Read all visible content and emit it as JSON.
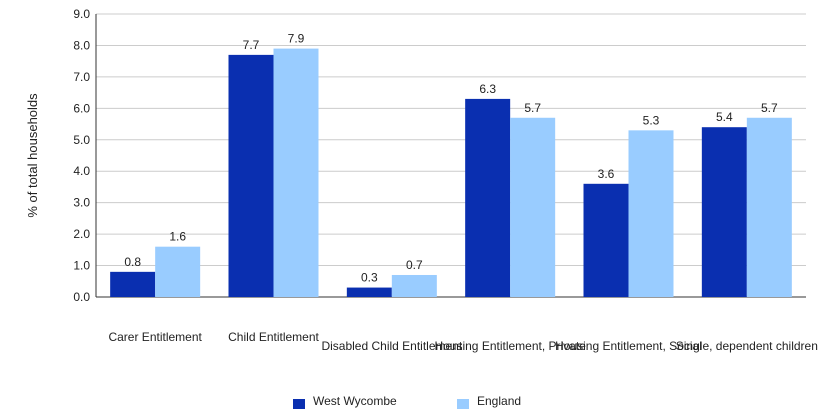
{
  "chart_data": {
    "type": "bar",
    "title": "",
    "xlabel": "",
    "ylabel": "% of total households",
    "ylim": [
      0,
      9
    ],
    "ytick_step": 1,
    "yticks": [
      "0.0",
      "1.0",
      "2.0",
      "3.0",
      "4.0",
      "5.0",
      "6.0",
      "7.0",
      "8.0",
      "9.0"
    ],
    "grid": true,
    "legend_position": "bottom",
    "categories": [
      "Carer Entitlement",
      "Child Entitlement",
      "Disabled Child Entitlement",
      "Housing Entitlement, Private",
      "Housing Entitlement, Social",
      "Single, dependent children"
    ],
    "series": [
      {
        "name": "West Wycombe",
        "color": "#0a2fb0",
        "values": [
          0.8,
          7.7,
          0.3,
          6.3,
          3.6,
          5.4
        ],
        "labels": [
          "0.8",
          "7.7",
          "0.3",
          "6.3",
          "3.6",
          "5.4"
        ]
      },
      {
        "name": "England",
        "color": "#99ccff",
        "values": [
          1.6,
          7.9,
          0.7,
          5.7,
          5.3,
          5.7
        ],
        "labels": [
          "1.6",
          "7.9",
          "0.7",
          "5.7",
          "5.3",
          "5.7"
        ]
      }
    ]
  }
}
